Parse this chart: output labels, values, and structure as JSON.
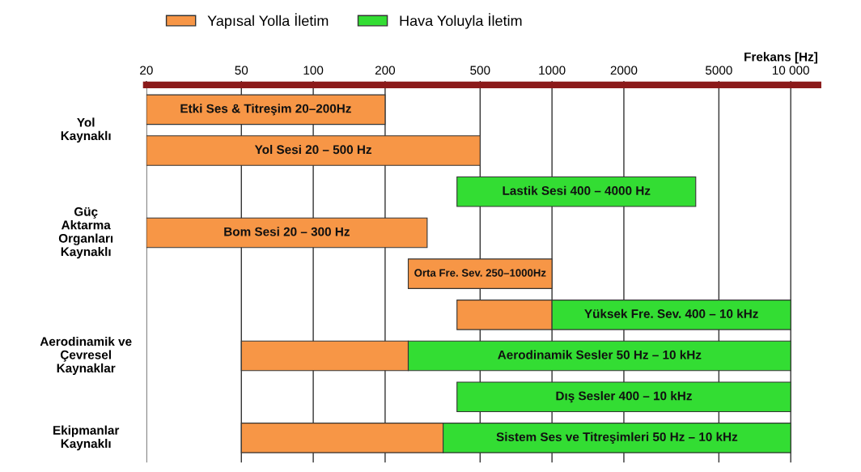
{
  "chart_data": {
    "type": "bar",
    "orientation": "horizontal",
    "log": "x",
    "grid": "x",
    "legend": "top",
    "tick_labels": "x",
    "xlabel": "Frekans [Hz]",
    "categories": [
      "Etki Ses & Titreşim 20–200Hz",
      "Yol Sesi 20 – 500 Hz",
      "Lastik Sesi 400 – 4000 Hz",
      "Bom Sesi 20 – 300 Hz",
      "Orta Fre. Sev. 250–1000Hz",
      "Yüksek Fre. Sev. 400 – 10 kHz",
      "Aerodinamik Sesler 50 Hz – 10 kHz",
      "Dış Sesler 400 – 10 kHz",
      "Sistem Ses ve Titreşimleri 50 Hz – 10 kHz"
    ],
    "series": [
      {
        "name": "Yapısal Yolla İletim",
        "color": "#f79646",
        "base": [
          20,
          20,
          null,
          20,
          250,
          400,
          50,
          null,
          50
        ],
        "values": [
          180,
          480,
          null,
          280,
          750,
          600,
          200,
          null,
          300
        ]
      },
      {
        "name": "Hava Yoluyla İletim",
        "color": "#33dd33",
        "base": [
          null,
          null,
          400,
          null,
          null,
          1000,
          250,
          400,
          350
        ],
        "values": [
          null,
          null,
          3600,
          null,
          null,
          9000,
          9750,
          9600,
          9650
        ]
      }
    ],
    "xlim": [
      20,
      13000
    ],
    "xticks": [
      20,
      50,
      100,
      200,
      500,
      1000,
      2000,
      5000,
      {
        "value": 10000,
        "label": "10 000"
      }
    ],
    "annotations": [
      "Yol\nKaynaklı",
      "Güç\nAktarma\nOrganları\nKaynaklı",
      "Aerodinamik ve\nÇevresel\nKaynaklar",
      "Ekipmanlar\nKaynaklı"
    ]
  }
}
